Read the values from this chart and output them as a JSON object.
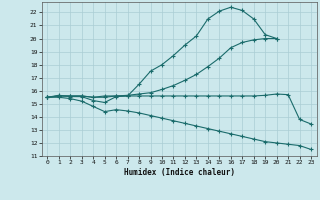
{
  "background_color": "#cce8ec",
  "grid_color": "#aacdd4",
  "line_color": "#1a6b6b",
  "xlabel": "Humidex (Indice chaleur)",
  "xlim": [
    -0.5,
    23.5
  ],
  "ylim": [
    11,
    22.8
  ],
  "yticks": [
    11,
    12,
    13,
    14,
    15,
    16,
    17,
    18,
    19,
    20,
    21,
    22
  ],
  "xticks": [
    0,
    1,
    2,
    3,
    4,
    5,
    6,
    7,
    8,
    9,
    10,
    11,
    12,
    13,
    14,
    15,
    16,
    17,
    18,
    19,
    20,
    21,
    22,
    23
  ],
  "curve1_x": [
    0,
    1,
    2,
    3,
    4,
    5,
    6,
    7,
    8,
    9,
    10,
    11,
    12,
    13,
    14,
    15,
    16,
    17,
    18,
    19,
    20
  ],
  "curve1_y": [
    15.5,
    15.65,
    15.55,
    15.55,
    15.25,
    15.1,
    15.55,
    15.6,
    16.5,
    17.5,
    18.0,
    18.7,
    19.5,
    20.2,
    21.5,
    22.1,
    22.4,
    22.15,
    21.5,
    20.3,
    20.0
  ],
  "curve2_x": [
    0,
    1,
    2,
    3,
    4,
    5,
    6,
    7,
    8,
    9,
    10,
    11,
    12,
    13,
    14,
    15,
    16,
    17,
    18,
    19,
    20
  ],
  "curve2_y": [
    15.5,
    15.6,
    15.6,
    15.6,
    15.5,
    15.5,
    15.6,
    15.65,
    15.75,
    15.85,
    16.1,
    16.4,
    16.8,
    17.25,
    17.85,
    18.5,
    19.3,
    19.7,
    19.9,
    20.0,
    20.0
  ],
  "curve3_x": [
    0,
    1,
    2,
    3,
    4,
    5,
    6,
    7,
    8,
    9,
    10,
    11,
    12,
    13,
    14,
    15,
    16,
    17,
    18,
    19,
    20,
    21,
    22,
    23
  ],
  "curve3_y": [
    15.5,
    15.6,
    15.6,
    15.6,
    15.5,
    15.6,
    15.6,
    15.6,
    15.6,
    15.6,
    15.6,
    15.6,
    15.6,
    15.6,
    15.6,
    15.6,
    15.6,
    15.6,
    15.6,
    15.65,
    15.75,
    15.7,
    13.8,
    13.45
  ],
  "curve4_x": [
    0,
    1,
    2,
    3,
    4,
    5,
    6,
    7,
    8,
    9,
    10,
    11,
    12,
    13,
    14,
    15,
    16,
    17,
    18,
    19,
    20,
    21,
    22,
    23
  ],
  "curve4_y": [
    15.5,
    15.5,
    15.4,
    15.2,
    14.8,
    14.4,
    14.55,
    14.45,
    14.3,
    14.1,
    13.9,
    13.7,
    13.5,
    13.3,
    13.1,
    12.9,
    12.7,
    12.5,
    12.3,
    12.1,
    12.0,
    11.9,
    11.8,
    11.5
  ]
}
